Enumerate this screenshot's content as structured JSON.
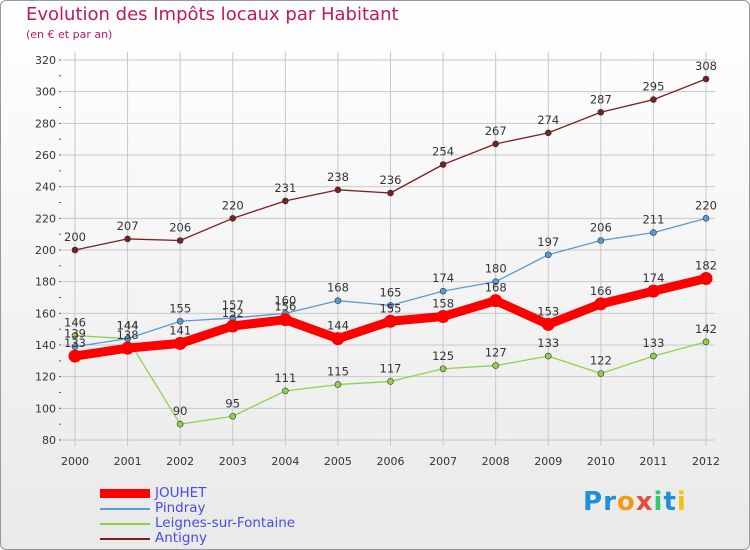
{
  "chart_data": {
    "type": "line",
    "title": "Evolution des Impôts locaux par Habitant",
    "subtitle": "(en € et par an)",
    "xlabel": "",
    "ylabel": "",
    "categories": [
      "2000",
      "2001",
      "2002",
      "2003",
      "2004",
      "2005",
      "2006",
      "2007",
      "2008",
      "2009",
      "2010",
      "2011",
      "2012"
    ],
    "ylim": [
      80,
      320
    ],
    "yticks": [
      80,
      100,
      120,
      140,
      160,
      180,
      200,
      220,
      240,
      260,
      280,
      300,
      320
    ],
    "grid": true,
    "legend_position": "bottom-left",
    "series": [
      {
        "name": "JOUHET",
        "color": "#ff0000",
        "values": [
          133,
          138,
          141,
          152,
          156,
          144,
          155,
          158,
          168,
          153,
          166,
          174,
          182
        ]
      },
      {
        "name": "Pindray",
        "color": "#5b9bd5",
        "values": [
          139,
          144,
          155,
          157,
          160,
          168,
          165,
          174,
          180,
          197,
          206,
          211,
          220
        ]
      },
      {
        "name": "Leignes-sur-Fontaine",
        "color": "#8fd14f",
        "values": [
          146,
          144,
          90,
          95,
          111,
          115,
          117,
          125,
          127,
          133,
          122,
          133,
          142
        ]
      },
      {
        "name": "Antigny",
        "color": "#7b2020",
        "values": [
          200,
          207,
          206,
          220,
          231,
          238,
          236,
          254,
          267,
          274,
          287,
          295,
          308
        ]
      }
    ]
  },
  "brand": {
    "letters": [
      {
        "ch": "P",
        "color": "#1f8fd6"
      },
      {
        "ch": "r",
        "color": "#1f8fd6"
      },
      {
        "ch": "o",
        "color": "#f39c12"
      },
      {
        "ch": "x",
        "color": "#e74c3c"
      },
      {
        "ch": "i",
        "color": "#2ecc71"
      },
      {
        "ch": "t",
        "color": "#1f8fd6"
      },
      {
        "ch": "i",
        "color": "#f1c40f"
      }
    ]
  }
}
